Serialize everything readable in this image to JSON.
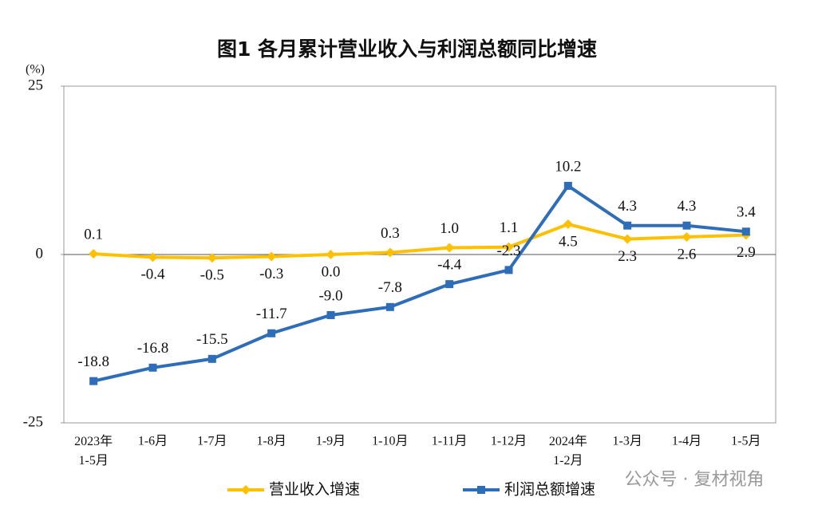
{
  "chart_data": {
    "type": "line",
    "title": "图1  各月累计营业收入与利润总额同比增速",
    "y_unit": "(%)",
    "categories": [
      "2023年\n1-5月",
      "1-6月",
      "1-7月",
      "1-8月",
      "1-9月",
      "1-10月",
      "1-11月",
      "1-12月",
      "2024年\n1-2月",
      "1-3月",
      "1-4月",
      "1-5月"
    ],
    "series": [
      {
        "name": "营业收入增速",
        "color": "#ffc000",
        "marker": "diamond",
        "values": [
          0.1,
          -0.4,
          -0.5,
          -0.3,
          0.0,
          0.3,
          1.0,
          1.1,
          4.5,
          2.3,
          2.6,
          2.9
        ],
        "value_labels": [
          "0.1",
          "-0.4",
          "-0.5",
          "-0.3",
          "0.0",
          "0.3",
          "1.0",
          "1.1",
          "4.5",
          "2.3",
          "2.6",
          "2.9"
        ]
      },
      {
        "name": "利润总额增速",
        "color": "#2e6db8",
        "marker": "square",
        "values": [
          -18.8,
          -16.8,
          -15.5,
          -11.7,
          -9.0,
          -7.8,
          -4.4,
          -2.3,
          10.2,
          4.3,
          4.3,
          3.4
        ],
        "value_labels": [
          "-18.8",
          "-16.8",
          "-15.5",
          "-11.7",
          "-9.0",
          "-7.8",
          "-4.4",
          "-2.3",
          "10.2",
          "4.3",
          "4.3",
          "3.4"
        ]
      }
    ],
    "ylim": [
      -25,
      25
    ],
    "yticks": [
      -25,
      0,
      25
    ],
    "grid": false,
    "legend": "bottom"
  },
  "watermark": "公众号 · 复材视角"
}
